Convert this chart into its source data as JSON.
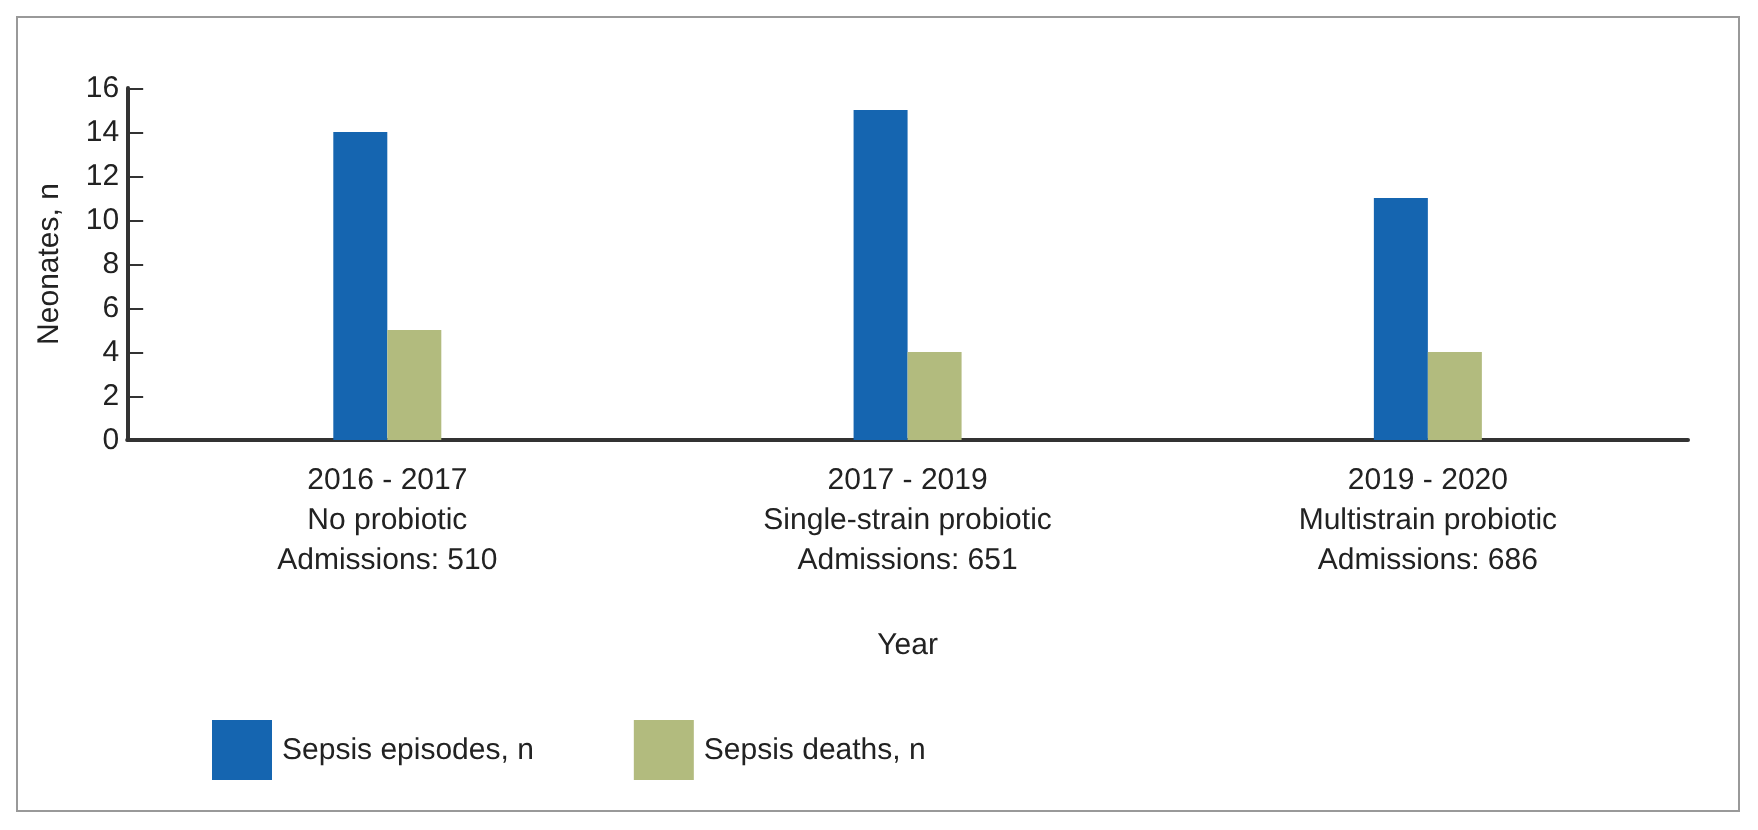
{
  "chart_data": {
    "type": "bar",
    "categories": [
      "2016 - 2017\nNo probiotic\nAdmissions: 510",
      "2017 - 2019\nSingle-strain probiotic\nAdmissions: 651",
      "2019 - 2020\nMultistrain probiotic\nAdmissions: 686"
    ],
    "series": [
      {
        "name": "Sepsis episodes, n",
        "color": "#1565b0",
        "values": [
          14,
          15,
          11
        ]
      },
      {
        "name": "Sepsis deaths, n",
        "color": "#b2bb7e",
        "values": [
          5,
          4,
          4
        ]
      }
    ],
    "xlabel": "Year",
    "ylabel": "Neonates, n",
    "ylim": [
      0,
      16
    ],
    "yticks": [
      0,
      2,
      4,
      6,
      8,
      10,
      12,
      14,
      16
    ],
    "grid": false,
    "legend": "bottom left"
  }
}
